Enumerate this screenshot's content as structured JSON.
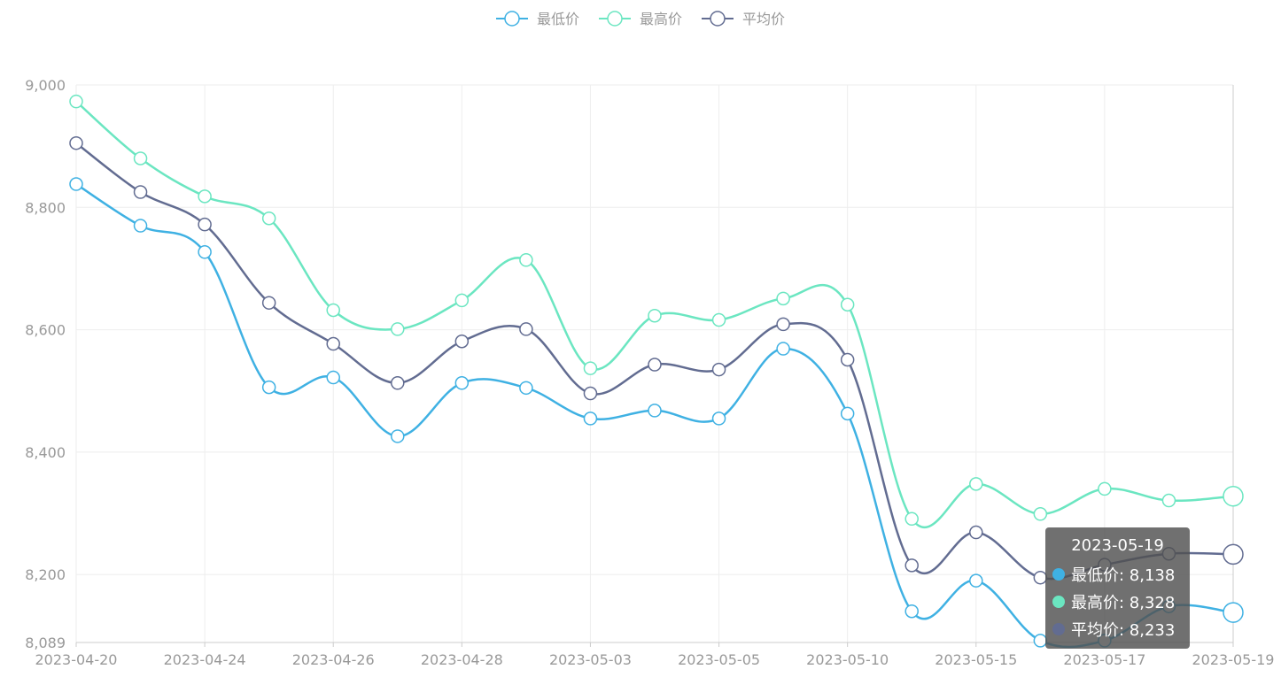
{
  "chart_data": {
    "type": "line",
    "title": "",
    "xlabel": "",
    "ylabel": "",
    "ylim": [
      8089,
      9000
    ],
    "y_ticks": [
      "8,089",
      "8,200",
      "8,400",
      "8,600",
      "8,800",
      "9,000"
    ],
    "y_tick_values": [
      8089,
      8200,
      8400,
      8600,
      8800,
      9000
    ],
    "x_ticks": [
      "2023-04-20",
      "2023-04-24",
      "2023-04-26",
      "2023-04-28",
      "2023-05-03",
      "2023-05-05",
      "2023-05-10",
      "2023-05-15",
      "2023-05-17",
      "2023-05-19"
    ],
    "x_tick_indices": [
      0,
      2,
      4,
      6,
      8,
      10,
      12,
      14,
      16,
      18
    ],
    "point_count": 19,
    "grid": true,
    "legend_position": "top-center",
    "series": [
      {
        "name": "最低价",
        "color": "#3fb1e3",
        "values": [
          8838,
          8770,
          8727,
          8506,
          8522,
          8426,
          8513,
          8505,
          8455,
          8468,
          8455,
          8569,
          8463,
          8140,
          8190,
          8092,
          8092,
          8148,
          8138
        ]
      },
      {
        "name": "最高价",
        "color": "#6be6c1",
        "values": [
          8973,
          8880,
          8818,
          8782,
          8632,
          8601,
          8648,
          8714,
          8537,
          8623,
          8616,
          8651,
          8641,
          8291,
          8348,
          8299,
          8340,
          8321,
          8328
        ]
      },
      {
        "name": "平均价",
        "color": "#626c91",
        "values": [
          8905,
          8825,
          8772,
          8644,
          8577,
          8513,
          8581,
          8601,
          8496,
          8543,
          8535,
          8609,
          8551,
          8215,
          8269,
          8195,
          8216,
          8234,
          8233
        ]
      }
    ]
  },
  "tooltip": {
    "date": "2023-05-19",
    "rows": [
      {
        "label": "最低价: 8,138",
        "color": "#3fb1e3"
      },
      {
        "label": "最高价: 8,328",
        "color": "#6be6c1"
      },
      {
        "label": "平均价: 8,233",
        "color": "#626c91"
      }
    ]
  }
}
